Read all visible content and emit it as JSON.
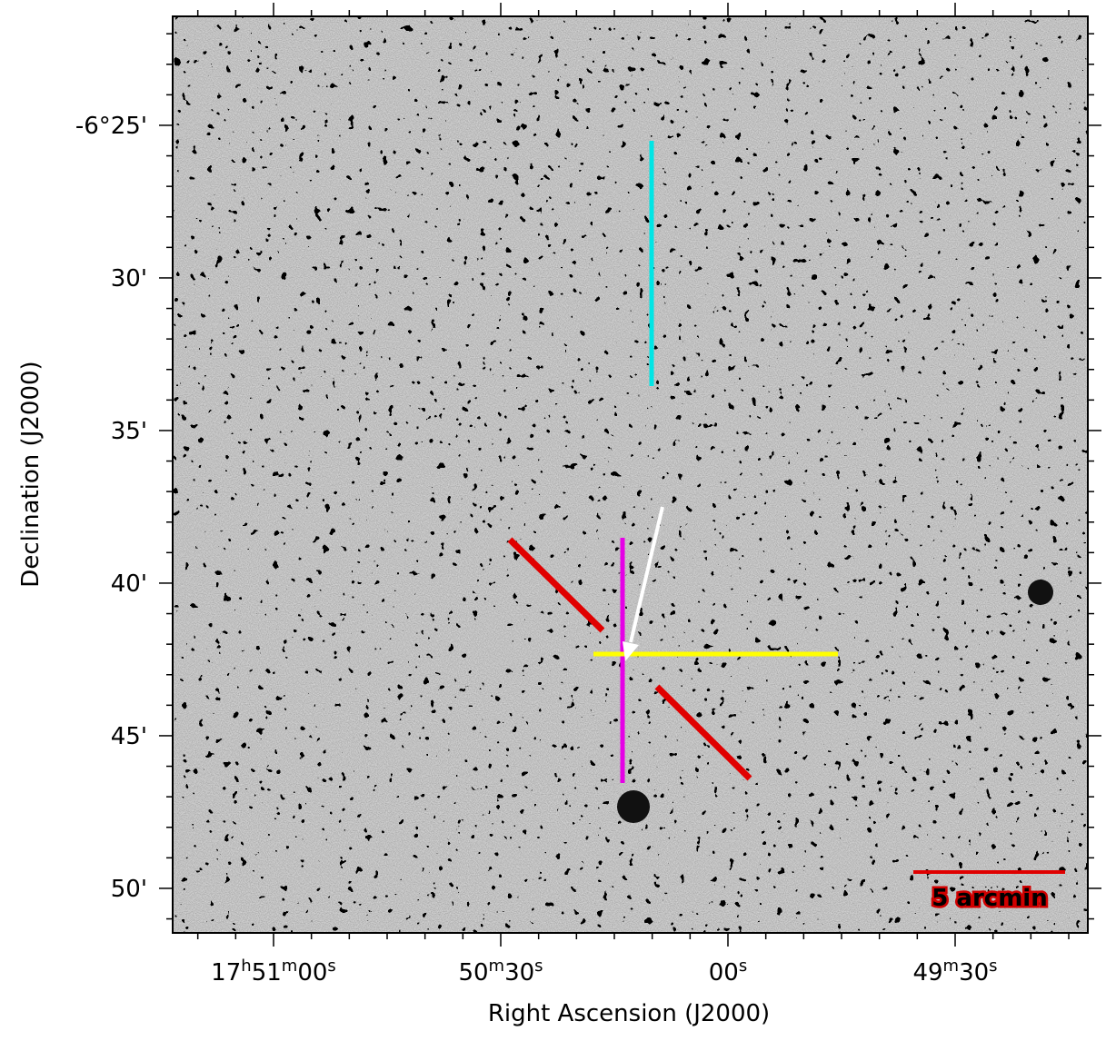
{
  "chart_data": {
    "type": "image",
    "x_label": "Right Ascension (J2000)",
    "y_label": "Declination (J2000)",
    "xlim": [
      64273.32,
      64152.48
    ],
    "xticks": [
      {
        "value": 64260,
        "label": [
          "17",
          "h",
          "51",
          "m",
          "00",
          "s"
        ]
      },
      {
        "value": 64230,
        "label": [
          "50",
          "m",
          "30",
          "s"
        ]
      },
      {
        "value": 64200,
        "label": [
          "00",
          "s"
        ]
      },
      {
        "value": 64170,
        "label": [
          "49",
          "m",
          "30",
          "s"
        ]
      }
    ],
    "xminorticks": [
      64270,
      64265,
      64255,
      64250,
      64245,
      64240,
      64235,
      64225,
      64220,
      64215,
      64210,
      64205,
      64195,
      64190,
      64185,
      64180,
      64175,
      64165,
      64160,
      64155
    ],
    "ylim": [
      -411.46,
      -381.43
    ],
    "yticks": [
      {
        "value": -385,
        "label": "-6°25'"
      },
      {
        "value": -390,
        "label": "30'"
      },
      {
        "value": -395,
        "label": "35'"
      },
      {
        "value": -400,
        "label": "40'"
      },
      {
        "value": -405,
        "label": "45'"
      },
      {
        "value": -410,
        "label": "50'"
      }
    ],
    "yminorticks": [
      -382,
      -383,
      -384,
      -386,
      -387,
      -388,
      -389,
      -391,
      -392,
      -393,
      -394,
      -396,
      -397,
      -398,
      -399,
      -401,
      -402,
      -403,
      -404,
      -406,
      -407,
      -408,
      -409,
      -411
    ],
    "scale_bar_label": "5 arcmin"
  }
}
